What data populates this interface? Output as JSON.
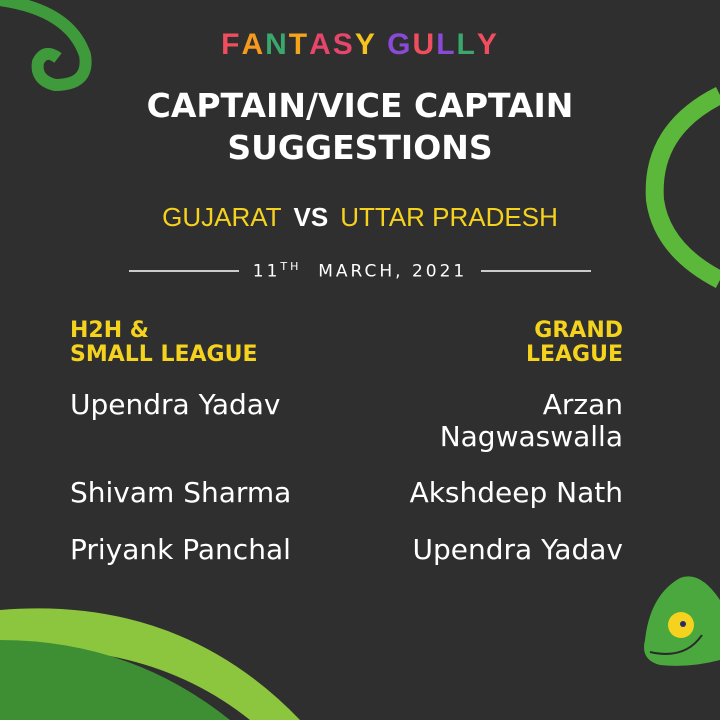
{
  "brand": {
    "logo_text": "FANTASY GULLY"
  },
  "title": {
    "line1": "CAPTAIN/VICE CAPTAIN",
    "line2": "SUGGESTIONS"
  },
  "match": {
    "team1": "GUJARAT",
    "vs": "VS",
    "team2": "UTTAR PRADESH",
    "date_day": "11",
    "date_suffix": "TH",
    "date_rest": "MARCH, 2021"
  },
  "left": {
    "heading1": "H2H &",
    "heading2": "SMALL LEAGUE",
    "players": [
      "Upendra Yadav",
      "Shivam Sharma",
      "Priyank Panchal"
    ]
  },
  "right": {
    "heading1": "GRAND",
    "heading2": "LEAGUE",
    "players": [
      "Arzan Nagwaswalla",
      "Akshdeep Nath",
      "Upendra Yadav"
    ]
  },
  "colors": {
    "background": "#2f2f2f",
    "accent_yellow": "#f5d21e",
    "green": "#4caf3a"
  }
}
